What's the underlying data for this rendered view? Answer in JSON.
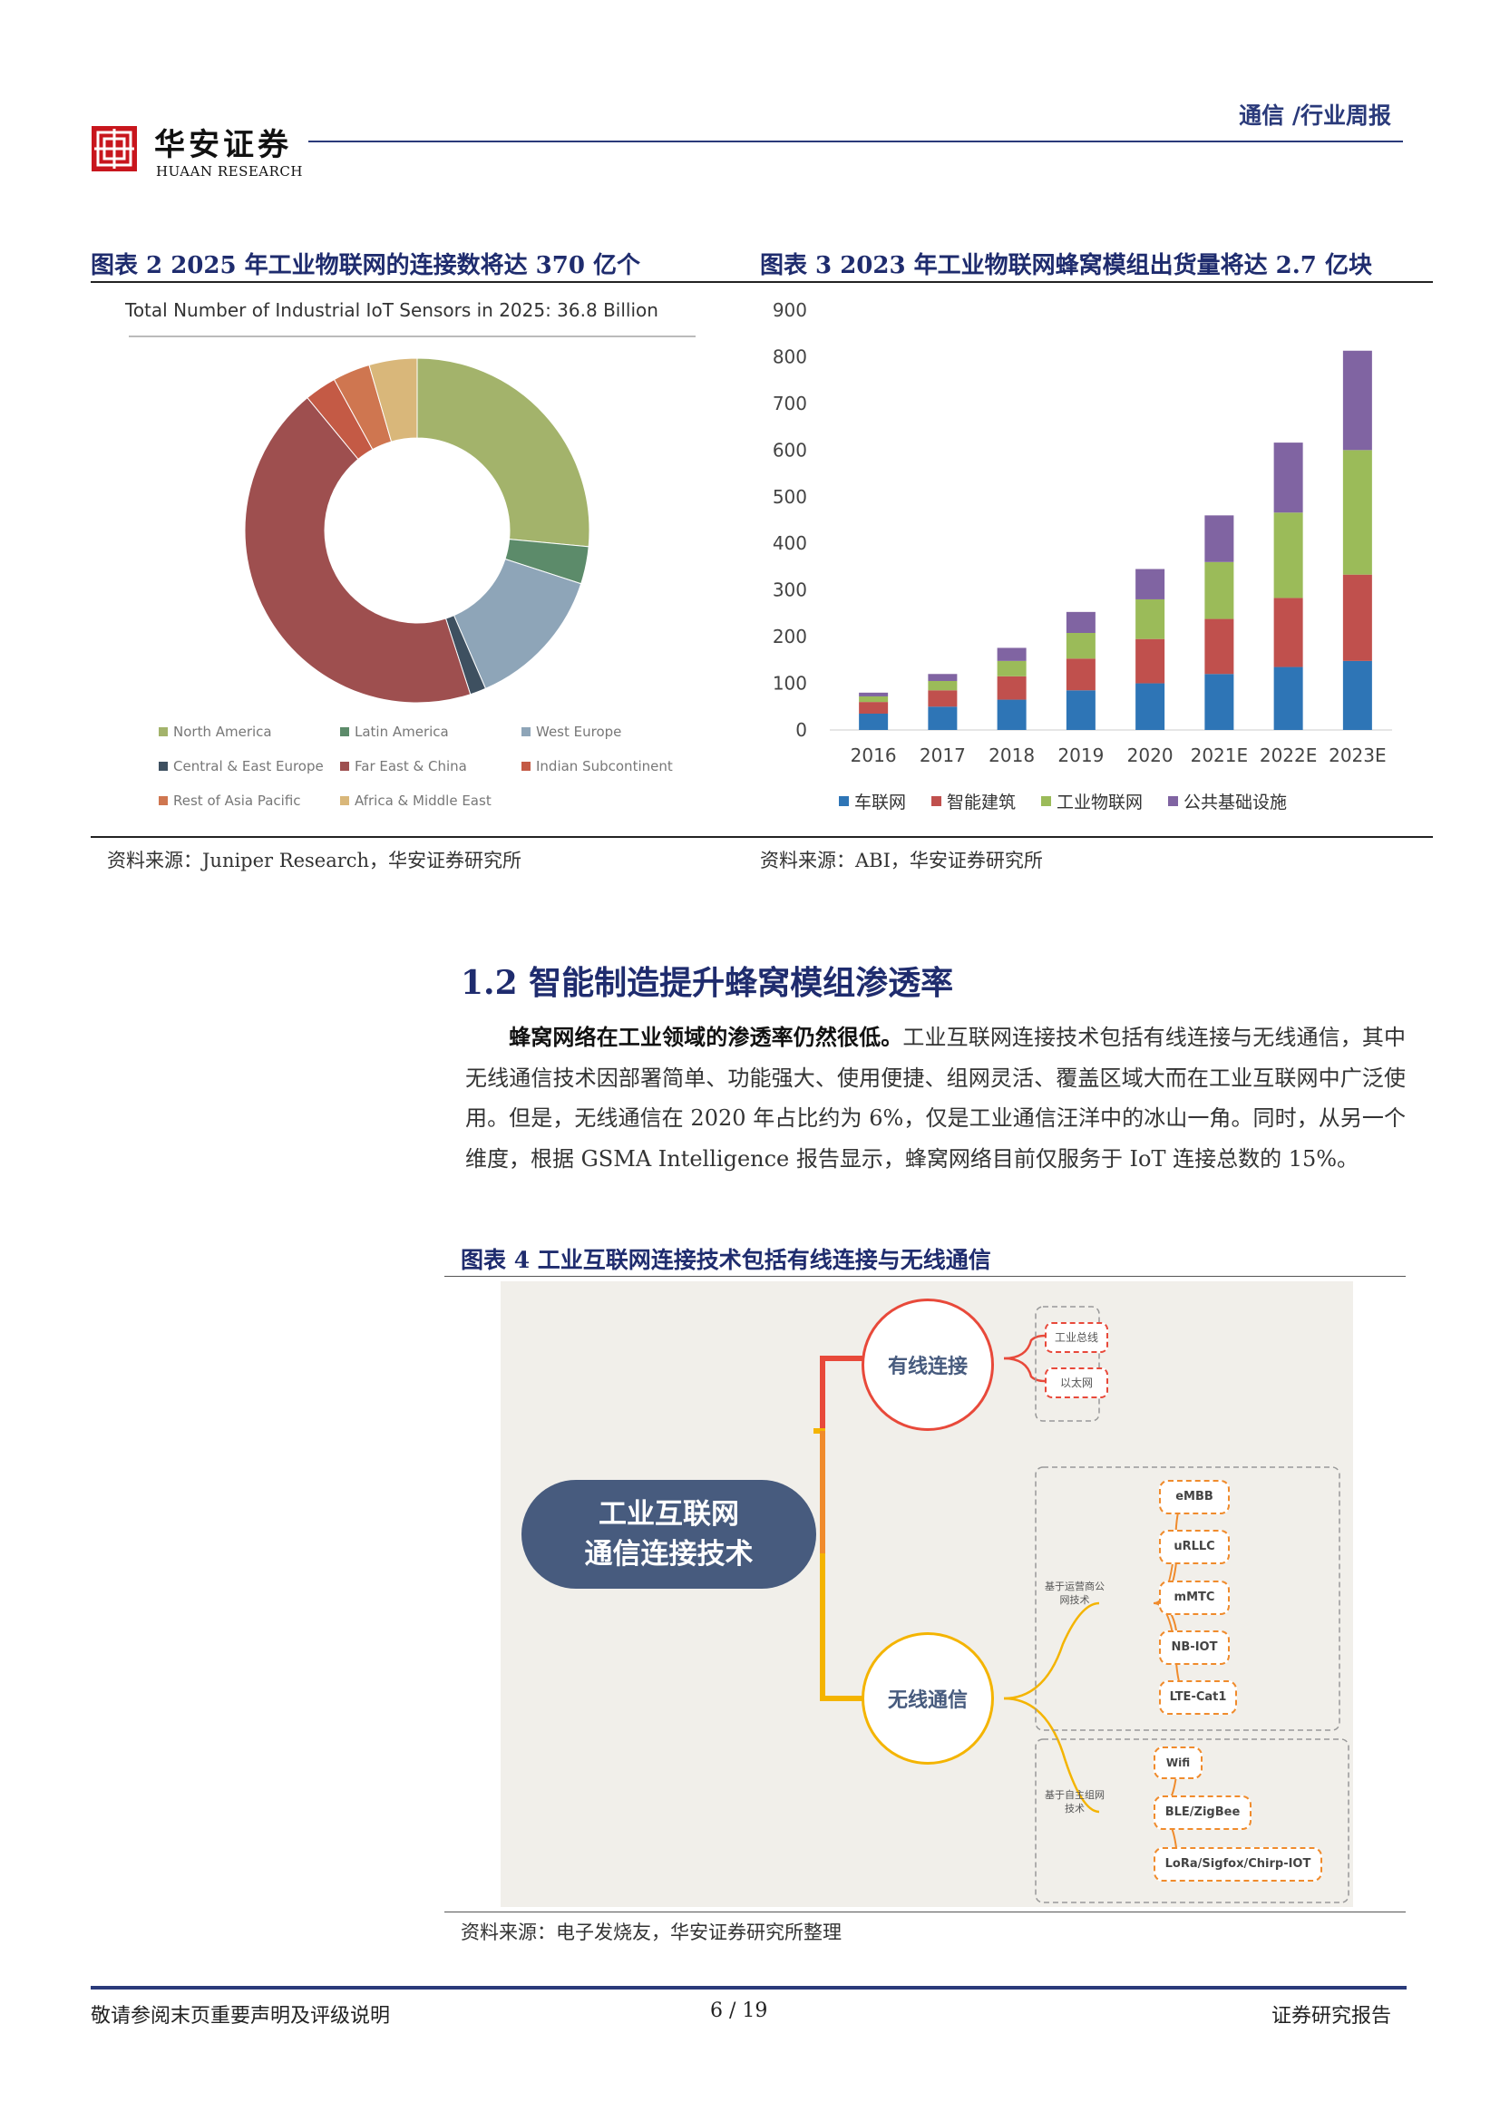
{
  "header": {
    "logo_cn": "华安证券",
    "logo_en": "HUAAN RESEARCH",
    "right": "通信 /行业周报"
  },
  "fig2": {
    "title": "图表 2 2025 年工业物联网的连接数将达 370 亿个",
    "source": "资料来源：Juniper Research，华安证券研究所"
  },
  "fig3": {
    "title": "图表 3 2023 年工业物联网蜂窝模组出货量将达 2.7 亿块",
    "source": "资料来源：ABI，华安证券研究所"
  },
  "chart_data": [
    {
      "type": "pie",
      "title": "Total Number of Industrial IoT Sensors in 2025: 36.8 Billion",
      "donut": true,
      "slices": [
        {
          "name": "North America",
          "value": 26.5,
          "color": "#a3b36b"
        },
        {
          "name": "Latin America",
          "value": 3.5,
          "color": "#5c8b6a"
        },
        {
          "name": "West Europe",
          "value": 13.5,
          "color": "#8ea5b8"
        },
        {
          "name": "Central & East Europe",
          "value": 1.5,
          "color": "#3e5060"
        },
        {
          "name": "Far East & China",
          "value": 44.0,
          "color": "#9e4f4f"
        },
        {
          "name": "Indian Subcontinent",
          "value": 3.0,
          "color": "#c45a45"
        },
        {
          "name": "Rest of Asia Pacific",
          "value": 3.5,
          "color": "#cf7650"
        },
        {
          "name": "Africa & Middle East",
          "value": 4.5,
          "color": "#d9b77a"
        }
      ],
      "legend_position": "bottom"
    },
    {
      "type": "bar",
      "stacked": true,
      "categories": [
        "2016",
        "2017",
        "2018",
        "2019",
        "2020",
        "2021E",
        "2022E",
        "2023E"
      ],
      "ylim": [
        0,
        900
      ],
      "yticks": [
        0,
        100,
        200,
        300,
        400,
        500,
        600,
        700,
        800,
        900
      ],
      "series": [
        {
          "name": "车联网",
          "color": "#2e75b6",
          "values": [
            35,
            50,
            65,
            85,
            100,
            120,
            135,
            148
          ]
        },
        {
          "name": "智能建筑",
          "color": "#c0504d",
          "values": [
            25,
            35,
            50,
            68,
            95,
            118,
            148,
            185
          ]
        },
        {
          "name": "工业物联网",
          "color": "#9bbb59",
          "values": [
            12,
            20,
            33,
            55,
            85,
            122,
            183,
            267
          ]
        },
        {
          "name": "公共基础设施",
          "color": "#8064a2",
          "values": [
            8,
            15,
            28,
            45,
            65,
            100,
            150,
            213
          ]
        }
      ],
      "legend_position": "bottom"
    }
  ],
  "section": {
    "title": "1.2  智能制造提升蜂窝模组渗透率",
    "para_bold": "蜂窝网络在工业领域的渗透率仍然很低。",
    "para_rest": "工业互联网连接技术包括有线连接与无线通信，其中无线通信技术因部署简单、功能强大、使用便捷、组网灵活、覆盖区域大而在工业互联网中广泛使用。但是，无线通信在 2020 年占比约为 6%，仅是工业通信汪洋中的冰山一角。同时，从另一个维度，根据 GSMA Intelligence 报告显示，蜂窝网络目前仅服务于 IoT 连接总数的 15%。"
  },
  "fig4": {
    "title": "图表 4  工业互联网连接技术包括有线连接与无线通信",
    "source": "资料来源：电子发烧友，华安证券研究所整理",
    "root_line1": "工业互联网",
    "root_line2": "通信连接技术",
    "wired": "有线连接",
    "wired_items": [
      "工业总线",
      "以太网"
    ],
    "wireless": "无线通信",
    "operator_group": "基于运营商公网技术",
    "operator_items": [
      "eMBB",
      "uRLLC",
      "mMTC",
      "NB-IOT",
      "LTE-Cat1"
    ],
    "self_group": "基于自主组网技术",
    "self_items": [
      "Wifi",
      "BLE/ZigBee",
      "LoRa/Sigfox/Chirp-IOT"
    ]
  },
  "footer": {
    "left": "敬请参阅末页重要声明及评级说明",
    "page": "6 / 19",
    "right": "证券研究报告"
  }
}
